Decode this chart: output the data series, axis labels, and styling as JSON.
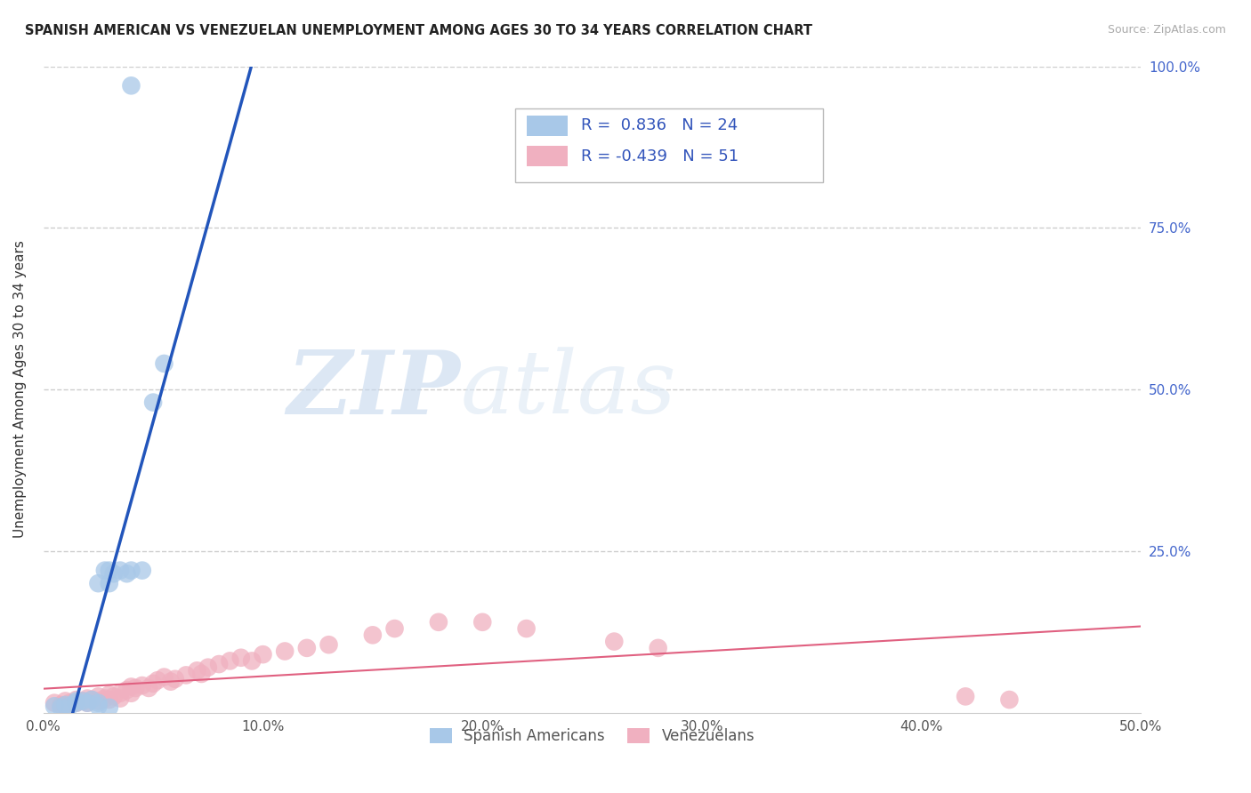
{
  "title": "SPANISH AMERICAN VS VENEZUELAN UNEMPLOYMENT AMONG AGES 30 TO 34 YEARS CORRELATION CHART",
  "source": "Source: ZipAtlas.com",
  "ylabel": "Unemployment Among Ages 30 to 34 years",
  "xlim": [
    0.0,
    0.5
  ],
  "ylim": [
    0.0,
    1.0
  ],
  "xticks": [
    0.0,
    0.1,
    0.2,
    0.3,
    0.4,
    0.5
  ],
  "yticks": [
    0.25,
    0.5,
    0.75,
    1.0
  ],
  "xticklabels": [
    "0.0%",
    "10.0%",
    "20.0%",
    "30.0%",
    "40.0%",
    "50.0%"
  ],
  "yticklabels_right": [
    "25.0%",
    "50.0%",
    "75.0%",
    "100.0%"
  ],
  "watermark_zip": "ZIP",
  "watermark_atlas": "atlas",
  "legend_labels": [
    "Spanish Americans",
    "Venezuelans"
  ],
  "blue_R": 0.836,
  "blue_N": 24,
  "pink_R": -0.439,
  "pink_N": 51,
  "blue_color": "#a8c8e8",
  "pink_color": "#f0b0c0",
  "trend_blue": "#2255bb",
  "trend_pink": "#e06080",
  "grid_color": "#c8c8c8",
  "background_color": "#ffffff",
  "blue_scatter_x": [
    0.005,
    0.008,
    0.01,
    0.012,
    0.015,
    0.015,
    0.018,
    0.02,
    0.022,
    0.025,
    0.025,
    0.028,
    0.03,
    0.03,
    0.032,
    0.035,
    0.038,
    0.04,
    0.045,
    0.05,
    0.055,
    0.025,
    0.03,
    0.04
  ],
  "blue_scatter_y": [
    0.01,
    0.008,
    0.012,
    0.01,
    0.015,
    0.018,
    0.018,
    0.015,
    0.02,
    0.015,
    0.2,
    0.22,
    0.2,
    0.22,
    0.215,
    0.22,
    0.215,
    0.22,
    0.22,
    0.48,
    0.54,
    0.01,
    0.008,
    0.97
  ],
  "pink_scatter_x": [
    0.005,
    0.008,
    0.01,
    0.01,
    0.012,
    0.015,
    0.015,
    0.018,
    0.02,
    0.02,
    0.022,
    0.025,
    0.025,
    0.028,
    0.03,
    0.03,
    0.032,
    0.035,
    0.035,
    0.038,
    0.04,
    0.04,
    0.042,
    0.045,
    0.048,
    0.05,
    0.052,
    0.055,
    0.058,
    0.06,
    0.065,
    0.07,
    0.072,
    0.075,
    0.08,
    0.085,
    0.09,
    0.095,
    0.1,
    0.11,
    0.12,
    0.13,
    0.15,
    0.16,
    0.18,
    0.2,
    0.22,
    0.26,
    0.28,
    0.42,
    0.44
  ],
  "pink_scatter_y": [
    0.015,
    0.012,
    0.018,
    0.01,
    0.015,
    0.02,
    0.015,
    0.018,
    0.022,
    0.015,
    0.02,
    0.025,
    0.018,
    0.022,
    0.028,
    0.02,
    0.025,
    0.03,
    0.022,
    0.035,
    0.04,
    0.03,
    0.038,
    0.042,
    0.038,
    0.045,
    0.05,
    0.055,
    0.048,
    0.052,
    0.058,
    0.065,
    0.06,
    0.07,
    0.075,
    0.08,
    0.085,
    0.08,
    0.09,
    0.095,
    0.1,
    0.105,
    0.12,
    0.13,
    0.14,
    0.14,
    0.13,
    0.11,
    0.1,
    0.025,
    0.02
  ]
}
